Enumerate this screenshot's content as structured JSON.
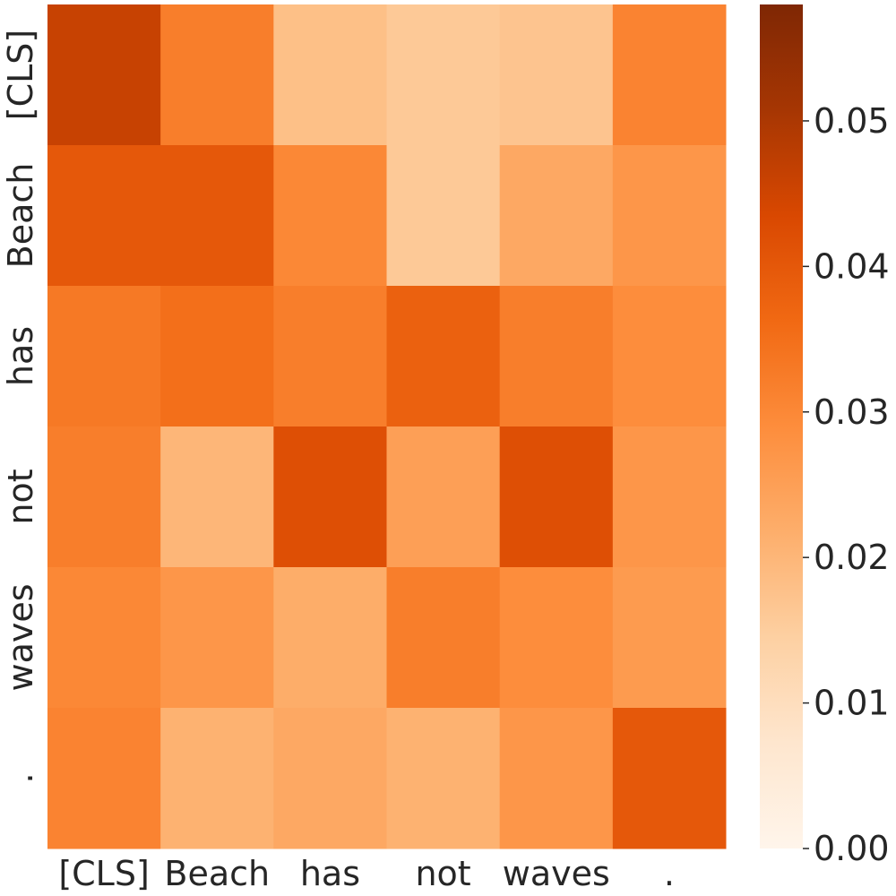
{
  "chart_data": {
    "type": "heatmap",
    "x_labels": [
      "[CLS]",
      "Beach",
      "has",
      "not",
      "waves",
      "."
    ],
    "y_labels": [
      "[CLS]",
      "Beach",
      "has",
      "not",
      "waves",
      "."
    ],
    "values": [
      [
        0.046,
        0.032,
        0.018,
        0.016,
        0.017,
        0.031
      ],
      [
        0.04,
        0.04,
        0.03,
        0.016,
        0.023,
        0.027
      ],
      [
        0.033,
        0.035,
        0.032,
        0.038,
        0.032,
        0.029
      ],
      [
        0.032,
        0.02,
        0.042,
        0.025,
        0.042,
        0.027
      ],
      [
        0.03,
        0.027,
        0.022,
        0.032,
        0.029,
        0.026
      ],
      [
        0.031,
        0.021,
        0.023,
        0.021,
        0.027,
        0.04
      ]
    ],
    "colormap": "Oranges",
    "colorbar": {
      "vmin": 0.0,
      "vmax": 0.058,
      "ticks": [
        0.0,
        0.01,
        0.02,
        0.03,
        0.04,
        0.05
      ],
      "tick_labels": [
        "0.00",
        "0.01",
        "0.02",
        "0.03",
        "0.04",
        "0.05"
      ]
    },
    "title": "",
    "xlabel": "",
    "ylabel": ""
  }
}
